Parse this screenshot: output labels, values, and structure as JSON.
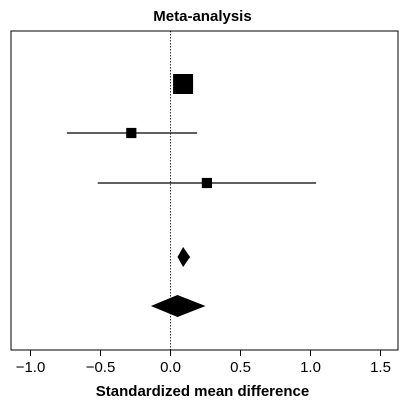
{
  "chart_data": {
    "type": "forest",
    "title": "Meta-analysis",
    "xlabel": "Standardized mean difference",
    "ylabel": "",
    "xlim": [
      -1.0,
      1.5
    ],
    "x_ticks": [
      -1.0,
      -0.5,
      0.0,
      0.5,
      1.0,
      1.5
    ],
    "x_tick_labels": [
      "−1.0",
      "−0.5",
      "0.0",
      "0.5",
      "1.0",
      "1.5"
    ],
    "reference_line": 0.0,
    "rows": [
      {
        "marker": "square",
        "estimate": 0.09,
        "ci": [
          0.09,
          0.09
        ],
        "weight": 1.0
      },
      {
        "marker": "square",
        "estimate": -0.28,
        "ci": [
          -0.74,
          0.19
        ],
        "weight": 0.3
      },
      {
        "marker": "square",
        "estimate": 0.26,
        "ci": [
          -0.52,
          1.04
        ],
        "weight": 0.3
      },
      {
        "marker": "diamond",
        "estimate": 0.09,
        "ci": [
          0.05,
          0.14
        ]
      },
      {
        "marker": "diamond",
        "estimate": 0.05,
        "ci": [
          -0.14,
          0.25
        ]
      }
    ]
  }
}
